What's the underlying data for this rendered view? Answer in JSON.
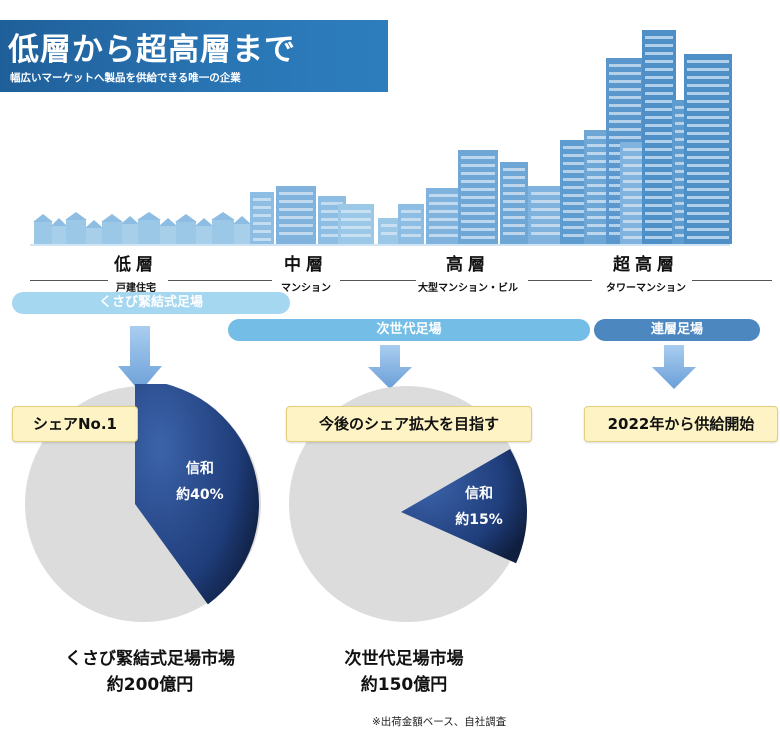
{
  "header": {
    "title": "低層から超高層まで",
    "subtitle": "幅広いマーケットへ製品を供給できる唯一の企業"
  },
  "tiers": [
    {
      "name": "低層",
      "desc": "戸建住宅"
    },
    {
      "name": "中層",
      "desc": "マンション"
    },
    {
      "name": "高層",
      "desc": "大型マンション・ビル"
    },
    {
      "name": "超高層",
      "desc": "タワーマンション"
    }
  ],
  "pills": {
    "kusabi": "くさび緊結式足場",
    "next_gen": "次世代足場",
    "renso": "連層足場"
  },
  "boxes": {
    "share_no1": "シェアNo.1",
    "expand": "今後のシェア拡大を目指す",
    "supply": "2022年から供給開始"
  },
  "colors": {
    "banner": "#2a76b5",
    "pill_light": "#9fd3ef",
    "pill_mid": "#6bb7e2",
    "pill_dark": "#4a86be",
    "pie_gray": "#dcdcdc",
    "slice_dark": "#1f3d7a",
    "slice_light": "#3c63aa",
    "box_fill": "#fdf3c4"
  },
  "chart_data": [
    {
      "type": "pie",
      "slice_label": "信和",
      "slice_value_label": "約40%",
      "values": [
        40,
        60
      ],
      "labels": [
        "信和",
        ""
      ],
      "market_name": "くさび緊結式足場市場",
      "market_size": "約200億円"
    },
    {
      "type": "pie",
      "slice_label": "信和",
      "slice_value_label": "約15%",
      "values": [
        15,
        85
      ],
      "labels": [
        "信和",
        ""
      ],
      "market_name": "次世代足場市場",
      "market_size": "約150億円"
    }
  ],
  "footnote": "※出荷金額ベース、自社調査"
}
